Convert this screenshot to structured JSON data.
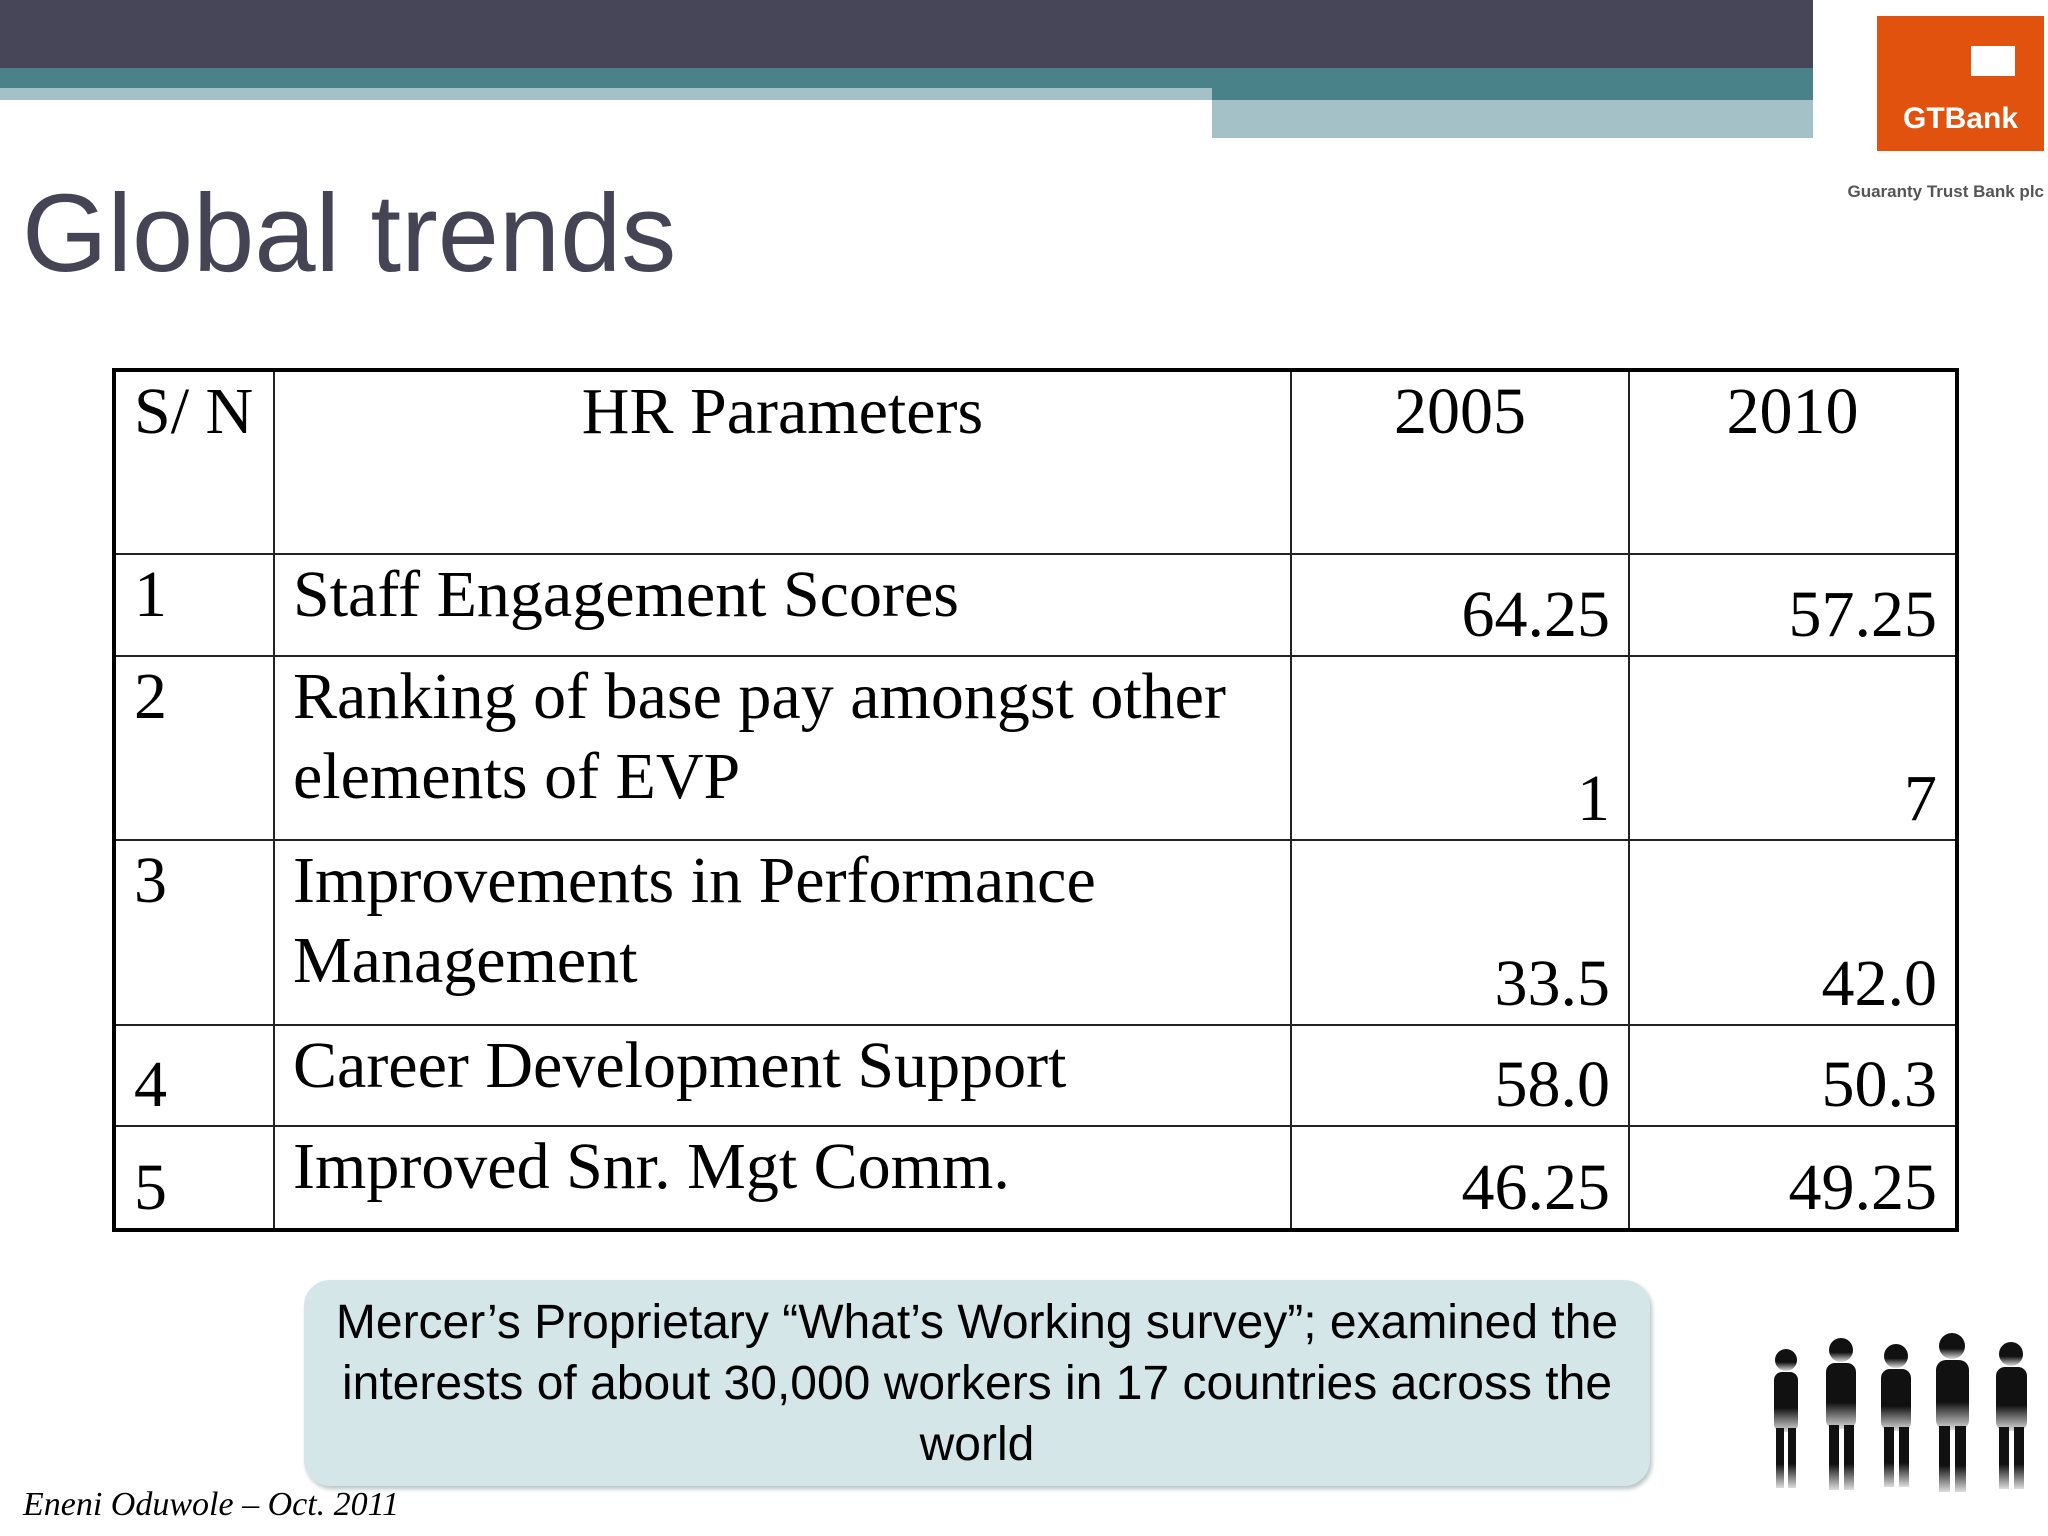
{
  "header": {
    "title": "Global trends"
  },
  "logo": {
    "name": "GTBank",
    "subtitle": "Guaranty Trust Bank plc"
  },
  "table": {
    "columns": [
      "S/ N",
      "HR Parameters",
      "2005",
      "2010"
    ],
    "rows": [
      [
        "1",
        "Staff Engagement Scores",
        "64.25",
        "57.25"
      ],
      [
        "2",
        "Ranking of base pay amongst other elements of EVP",
        "1",
        "7"
      ],
      [
        "3",
        "Improvements in Performance Management",
        "33.5",
        "42.0"
      ],
      [
        "4",
        "Career Development Support",
        "58.0",
        "50.3"
      ],
      [
        "5",
        "Improved Snr. Mgt Comm.",
        "46.25",
        "49.25"
      ]
    ]
  },
  "note": {
    "text": "Mercer’s Proprietary “What’s Working survey”; examined the interests of about 30,000 workers in 17 countries across the world"
  },
  "footer": {
    "author": "Eneni Oduwole – Oct. 2011"
  }
}
